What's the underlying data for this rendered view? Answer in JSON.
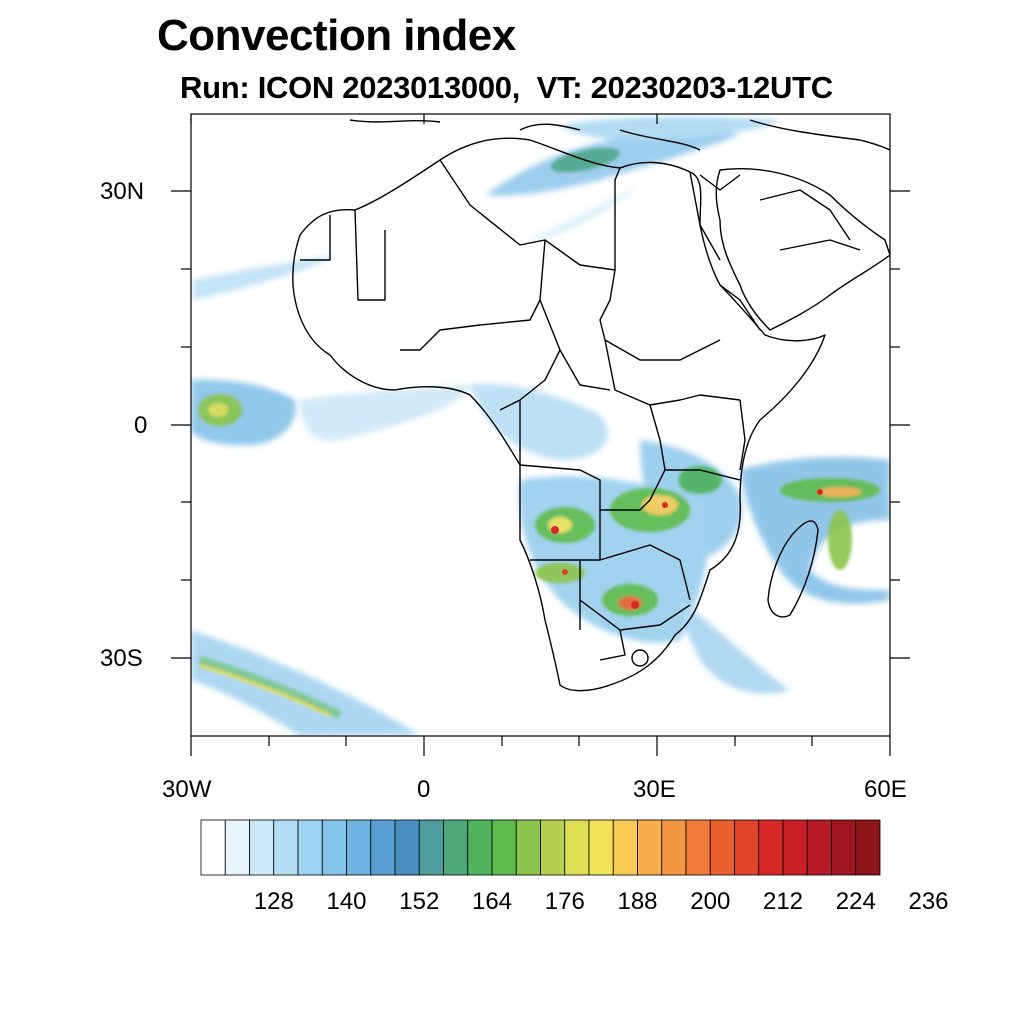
{
  "title": "Convection index",
  "subtitle": "Run: ICON 2023013000,  VT: 20230203-12UTC",
  "map": {
    "region": "Africa",
    "lon_range": [
      -30,
      60
    ],
    "lat_range": [
      -40,
      40
    ],
    "lon_ticks": [
      {
        "value": -30,
        "label": "30W"
      },
      {
        "value": 0,
        "label": "0"
      },
      {
        "value": 30,
        "label": "30E"
      },
      {
        "value": 60,
        "label": "60E"
      }
    ],
    "lat_ticks": [
      {
        "value": 30,
        "label": "30N"
      },
      {
        "value": 0,
        "label": "0"
      },
      {
        "value": -30,
        "label": "30S"
      }
    ]
  },
  "colorbar": {
    "colors": [
      "#ffffff",
      "#e8f4fc",
      "#cce8f7",
      "#b3def5",
      "#9cd4f2",
      "#85c4ea",
      "#6fb3e0",
      "#5a9fd4",
      "#4a8fbf",
      "#4e9d9c",
      "#4ea87c",
      "#4fb25c",
      "#5ebb4c",
      "#8cc44c",
      "#b6d04e",
      "#dede52",
      "#f4e258",
      "#f8cc54",
      "#f7b04a",
      "#f49742",
      "#ef7c38",
      "#e8602e",
      "#e04428",
      "#d72a28",
      "#c81e28",
      "#b51a25",
      "#a11620",
      "#8e141c"
    ],
    "labels": [
      "128",
      "140",
      "152",
      "164",
      "176",
      "188",
      "200",
      "212",
      "224",
      "236"
    ]
  },
  "chart_data": {
    "type": "map",
    "variable": "Convection index",
    "model_run": "ICON 2023013000",
    "valid_time": "20230203-12UTC",
    "colorbar_ticks": [
      128,
      140,
      152,
      164,
      176,
      188,
      200,
      212,
      224,
      236
    ],
    "colorbar_step": 4,
    "xlabel_ticks": [
      "30W",
      "0",
      "30E",
      "60E"
    ],
    "ylabel_ticks": [
      "30N",
      "0",
      "30S"
    ]
  }
}
